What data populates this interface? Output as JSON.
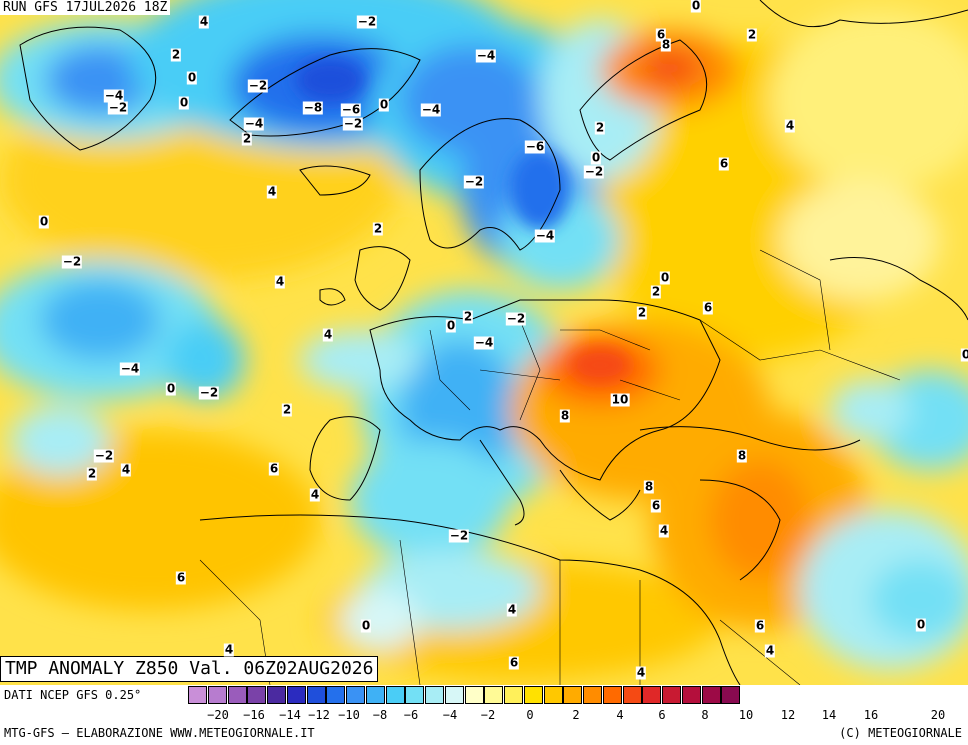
{
  "header": {
    "run": "RUN GFS 17JUL2026 18Z"
  },
  "title": "TMP ANOMALY Z850 Val. 06Z02AUG2026",
  "footer": {
    "source": "DATI NCEP GFS 0.25°",
    "credit_left": "MTG-GFS — ELABORAZIONE WWW.METEOGIORNALE.IT",
    "credit_right": "(C) METEOGIORNALE"
  },
  "legend": {
    "colors": [
      "#c98fd8",
      "#b77ccf",
      "#9a5cbb",
      "#7a42a8",
      "#4b2aa0",
      "#2b2bbf",
      "#1f4fdb",
      "#2470ec",
      "#3a92f4",
      "#3fb1f5",
      "#4acdf6",
      "#73e0f5",
      "#a8edf5",
      "#d7f7f7",
      "#ffffc8",
      "#fffa96",
      "#fff05a",
      "#ffe100",
      "#ffc800",
      "#ffab00",
      "#ff8c00",
      "#ff6a00",
      "#f54a14",
      "#e02828",
      "#c81a32",
      "#b40f3c",
      "#9c0a46",
      "#880a50"
    ],
    "ticks": [
      "−20",
      "−16",
      "−14",
      "−12",
      "−10",
      "−8",
      "−6",
      "−4",
      "−2",
      "0",
      "2",
      "4",
      "6",
      "8",
      "10",
      "12",
      "14",
      "16",
      "20"
    ]
  },
  "map_values": [
    {
      "text": "4"
    },
    {
      "text": "2"
    },
    {
      "text": "0"
    },
    {
      "text": "−4"
    },
    {
      "text": "−2"
    },
    {
      "text": "0"
    },
    {
      "text": "−2"
    },
    {
      "text": "−2"
    },
    {
      "text": "−8"
    },
    {
      "text": "−6"
    },
    {
      "text": "−2"
    },
    {
      "text": "0"
    },
    {
      "text": "−4"
    },
    {
      "text": "2"
    },
    {
      "text": "−4"
    },
    {
      "text": "−4"
    },
    {
      "text": "0"
    },
    {
      "text": "6"
    },
    {
      "text": "8"
    },
    {
      "text": "2"
    },
    {
      "text": "4"
    },
    {
      "text": "2"
    },
    {
      "text": "−6"
    },
    {
      "text": "0"
    },
    {
      "text": "−2"
    },
    {
      "text": "−2"
    },
    {
      "text": "6"
    },
    {
      "text": "4"
    },
    {
      "text": "0"
    },
    {
      "text": "2"
    },
    {
      "text": "−4"
    },
    {
      "text": "−2"
    },
    {
      "text": "4"
    },
    {
      "text": "0"
    },
    {
      "text": "2"
    },
    {
      "text": "6"
    },
    {
      "text": "0"
    },
    {
      "text": "2"
    },
    {
      "text": "−2"
    },
    {
      "text": "2"
    },
    {
      "text": "−4"
    },
    {
      "text": "4"
    },
    {
      "text": "−4"
    },
    {
      "text": "0"
    },
    {
      "text": "−2"
    },
    {
      "text": "2"
    },
    {
      "text": "10"
    },
    {
      "text": "8"
    },
    {
      "text": "−2"
    },
    {
      "text": "2"
    },
    {
      "text": "4"
    },
    {
      "text": "6"
    },
    {
      "text": "4"
    },
    {
      "text": "8"
    },
    {
      "text": "8"
    },
    {
      "text": "6"
    },
    {
      "text": "4"
    },
    {
      "text": "−2"
    },
    {
      "text": "6"
    },
    {
      "text": "4"
    },
    {
      "text": "0"
    },
    {
      "text": "6"
    },
    {
      "text": "4"
    },
    {
      "text": "0"
    },
    {
      "text": "6"
    },
    {
      "text": "4"
    },
    {
      "text": "4"
    },
    {
      "text": "0"
    }
  ]
}
